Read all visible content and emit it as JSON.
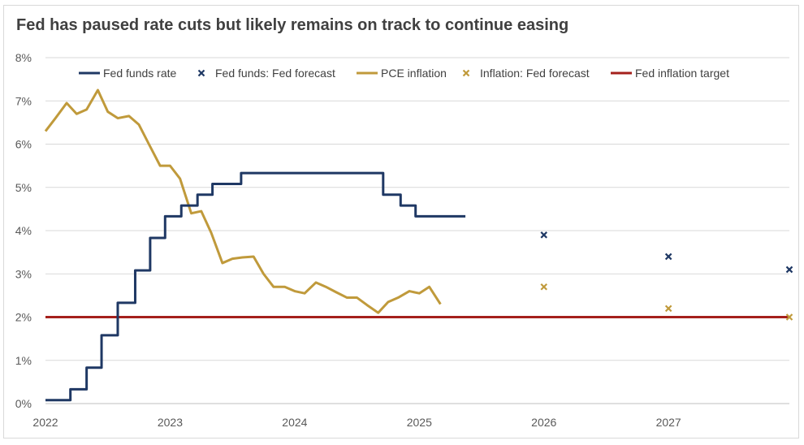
{
  "title": "Fed has paused rate cuts but likely remains on track to continue easing",
  "chart_data": {
    "type": "line",
    "title": "Fed has paused rate cuts but likely remains on track to continue easing",
    "xlabel": "",
    "ylabel": "",
    "xlim": [
      2022.0,
      2027.97
    ],
    "ylim": [
      0,
      8
    ],
    "x_ticks": [
      "2022",
      "2023",
      "2024",
      "2025",
      "2026",
      "2027"
    ],
    "y_ticks": [
      "0%",
      "1%",
      "2%",
      "3%",
      "4%",
      "5%",
      "6%",
      "7%",
      "8%"
    ],
    "grid": "horizontal",
    "legend_position": "top",
    "colors": {
      "fed_funds": "#1f3864",
      "pce": "#c09a3b",
      "target": "#a5201c",
      "grid": "#d9d9d9",
      "axis": "#bfbfbf"
    },
    "series": [
      {
        "name": "Fed funds rate",
        "style": "step",
        "points": [
          [
            2022.0,
            0.08
          ],
          [
            2022.2,
            0.33
          ],
          [
            2022.33,
            0.83
          ],
          [
            2022.45,
            1.58
          ],
          [
            2022.58,
            2.33
          ],
          [
            2022.72,
            3.08
          ],
          [
            2022.84,
            3.83
          ],
          [
            2022.96,
            4.33
          ],
          [
            2023.09,
            4.58
          ],
          [
            2023.22,
            4.83
          ],
          [
            2023.34,
            5.08
          ],
          [
            2023.57,
            5.33
          ],
          [
            2024.71,
            4.83
          ],
          [
            2024.85,
            4.58
          ],
          [
            2024.97,
            4.33
          ],
          [
            2025.37,
            4.33
          ]
        ]
      },
      {
        "name": "Fed funds: Fed forecast",
        "style": "marker",
        "points": [
          [
            2026.0,
            3.9
          ],
          [
            2027.0,
            3.4
          ],
          [
            2027.97,
            3.1
          ]
        ]
      },
      {
        "name": "PCE inflation",
        "style": "line",
        "points": [
          [
            2022.0,
            6.3
          ],
          [
            2022.08,
            6.6
          ],
          [
            2022.17,
            6.95
          ],
          [
            2022.25,
            6.7
          ],
          [
            2022.33,
            6.8
          ],
          [
            2022.42,
            7.25
          ],
          [
            2022.5,
            6.75
          ],
          [
            2022.58,
            6.6
          ],
          [
            2022.67,
            6.65
          ],
          [
            2022.75,
            6.45
          ],
          [
            2022.83,
            6.0
          ],
          [
            2022.92,
            5.5
          ],
          [
            2023.0,
            5.5
          ],
          [
            2023.08,
            5.2
          ],
          [
            2023.17,
            4.4
          ],
          [
            2023.25,
            4.45
          ],
          [
            2023.33,
            3.95
          ],
          [
            2023.42,
            3.25
          ],
          [
            2023.5,
            3.35
          ],
          [
            2023.58,
            3.38
          ],
          [
            2023.67,
            3.4
          ],
          [
            2023.75,
            3.0
          ],
          [
            2023.83,
            2.7
          ],
          [
            2023.92,
            2.7
          ],
          [
            2024.0,
            2.6
          ],
          [
            2024.08,
            2.55
          ],
          [
            2024.17,
            2.8
          ],
          [
            2024.25,
            2.7
          ],
          [
            2024.33,
            2.58
          ],
          [
            2024.42,
            2.45
          ],
          [
            2024.5,
            2.45
          ],
          [
            2024.58,
            2.28
          ],
          [
            2024.67,
            2.1
          ],
          [
            2024.75,
            2.35
          ],
          [
            2024.83,
            2.45
          ],
          [
            2024.92,
            2.6
          ],
          [
            2025.0,
            2.55
          ],
          [
            2025.08,
            2.7
          ],
          [
            2025.17,
            2.3
          ]
        ]
      },
      {
        "name": "Inflation: Fed forecast",
        "style": "marker",
        "points": [
          [
            2026.0,
            2.7
          ],
          [
            2027.0,
            2.2
          ],
          [
            2027.97,
            2.0
          ]
        ]
      },
      {
        "name": "Fed inflation target",
        "style": "hline",
        "points": [
          [
            2022.0,
            2.0
          ],
          [
            2027.97,
            2.0
          ]
        ]
      }
    ]
  }
}
